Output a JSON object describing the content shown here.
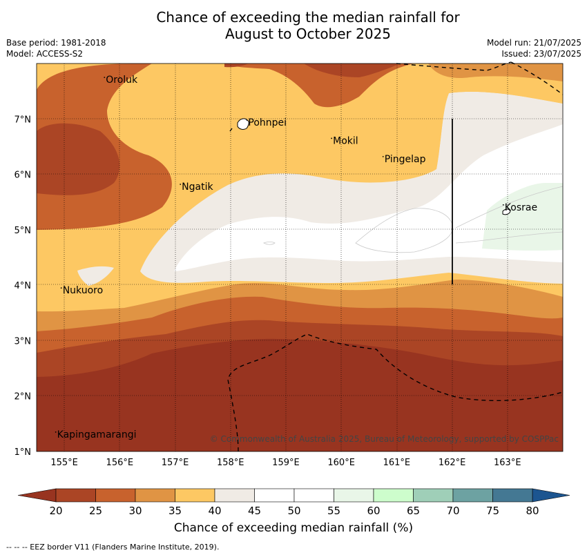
{
  "title_line1": "Chance of exceeding the median rainfall for",
  "title_line2": "August to October 2025",
  "base_period": "Base period: 1981-2018",
  "model": "Model: ACCESS-S2",
  "model_run": "Model run: 21/07/2025",
  "issued": "Issued: 23/07/2025",
  "copyright": "© Commonwealth of Australia 2025, Bureau of Meteorology, supported by COSPPac",
  "colorbar_label": "Chance of exceeding median rainfall (%)",
  "eez_note": "--  --  -- EEZ border V11 (Flanders Marine Institute, 2019).",
  "lon_ticks": [
    "155°E",
    "156°E",
    "157°E",
    "158°E",
    "159°E",
    "160°E",
    "161°E",
    "162°E",
    "163°E"
  ],
  "lat_ticks": [
    "1°N",
    "2°N",
    "3°N",
    "4°N",
    "5°N",
    "6°N",
    "7°N"
  ],
  "places": [
    {
      "name": "Oroluk",
      "lon": 155.75,
      "lat": 7.65
    },
    {
      "name": "Pohnpei",
      "lon": 158.32,
      "lat": 6.88
    },
    {
      "name": "Mokil",
      "lon": 159.85,
      "lat": 6.55
    },
    {
      "name": "Pingelap",
      "lon": 160.78,
      "lat": 6.22
    },
    {
      "name": "Ngatik",
      "lon": 157.12,
      "lat": 5.72
    },
    {
      "name": "Kosrae",
      "lon": 162.95,
      "lat": 5.35
    },
    {
      "name": "Nukuoro",
      "lon": 154.97,
      "lat": 3.85
    },
    {
      "name": "Kapingamarangi",
      "lon": 154.87,
      "lat": 1.25
    }
  ],
  "colorbar": {
    "ticks": [
      "20",
      "25",
      "30",
      "35",
      "40",
      "45",
      "50",
      "55",
      "60",
      "65",
      "70",
      "75",
      "80"
    ],
    "colors": [
      "#ab4525",
      "#c8622d",
      "#e09444",
      "#fdc863",
      "#f0ebe5",
      "#ffffff",
      "#ffffff",
      "#e9f6e8",
      "#cdfdcc",
      "#9fcfb8",
      "#6da2a2",
      "#447893"
    ],
    "under_color": "#983420",
    "over_color": "#1c5590"
  },
  "chart_data": {
    "type": "filled-contour-map",
    "variable": "Chance of exceeding median rainfall (%)",
    "period": "August to October 2025",
    "lon_range": [
      154.5,
      164.0
    ],
    "lat_range": [
      1.0,
      8.0
    ],
    "contour_levels": [
      20,
      25,
      30,
      35,
      40,
      45,
      50,
      55,
      60,
      65,
      70,
      75,
      80
    ],
    "grid": true,
    "regions_observed": [
      {
        "area": "far south (1°N-3°N)",
        "value_range": "<20"
      },
      {
        "area": "3°N-3.5°N band",
        "value_range": "20-35"
      },
      {
        "area": "central band 4°N-5.5°N",
        "value_range": "40-55"
      },
      {
        "area": "near Kosrae",
        "value_range": "55-60"
      },
      {
        "area": "northwest near Oroluk",
        "value_range": "20-35"
      }
    ]
  }
}
